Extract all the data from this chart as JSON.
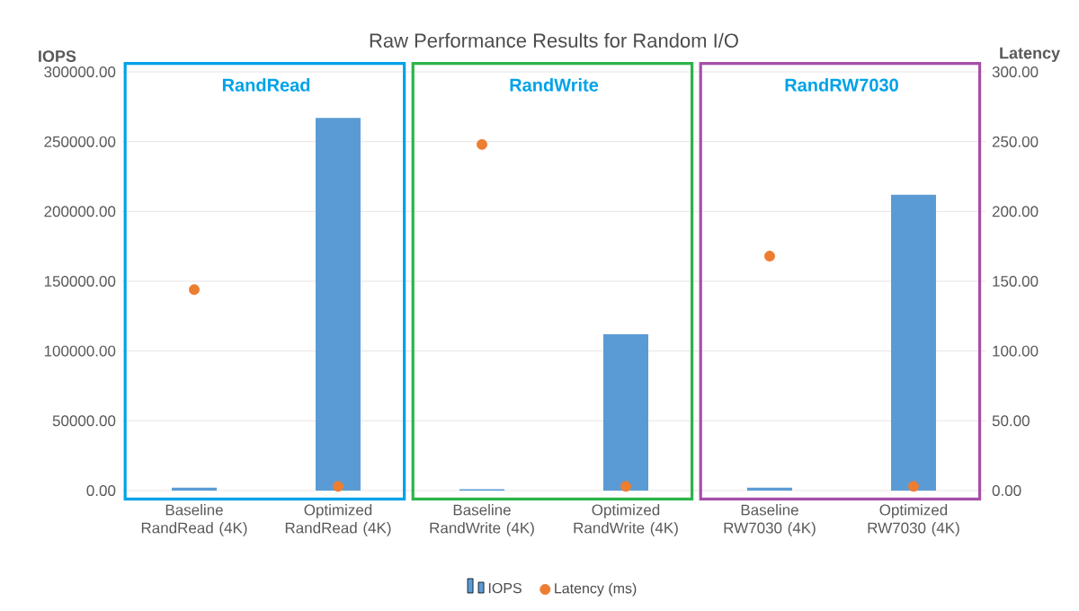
{
  "chart_data": {
    "type": "bar",
    "title": "Raw Performance Results for Random I/O",
    "ylabel": "IOPS",
    "y2label": "Latency",
    "categories": [
      "Baseline RandRead (4K)",
      "Optimized RandRead  (4K)",
      "Baseline RandWrite (4K)",
      "Optimized RandWrite (4K)",
      "Baseline RW7030 (4K)",
      "Optimized RW7030 (4K)"
    ],
    "series": [
      {
        "name": "IOPS",
        "type": "bar",
        "color": "#5b9bd5",
        "values": [
          2000,
          267000,
          1000,
          112000,
          2000,
          212000
        ]
      },
      {
        "name": "Latency (ms)",
        "type": "scatter",
        "axis": "y2",
        "color": "#ed7d31",
        "values": [
          144,
          3,
          248,
          3,
          168,
          3
        ]
      }
    ],
    "ylim": [
      0,
      300000
    ],
    "yticks": [
      {
        "value": 0,
        "label": "0.00"
      },
      {
        "value": 50000,
        "label": "50000.00"
      },
      {
        "value": 100000,
        "label": "100000.00"
      },
      {
        "value": 150000,
        "label": "150000.00"
      },
      {
        "value": 200000,
        "label": "200000.00"
      },
      {
        "value": 250000,
        "label": "250000.00"
      },
      {
        "value": 300000,
        "label": "300000.00"
      }
    ],
    "y2lim": [
      0,
      300
    ],
    "y2ticks": [
      {
        "value": 0,
        "label": "0.00"
      },
      {
        "value": 50,
        "label": "50.00"
      },
      {
        "value": 100,
        "label": "100.00"
      },
      {
        "value": 150,
        "label": "150.00"
      },
      {
        "value": 200,
        "label": "200.00"
      },
      {
        "value": 250,
        "label": "250.00"
      },
      {
        "value": 300,
        "label": "300.00"
      }
    ],
    "annotations": [
      "RandRead",
      "RandWrite",
      "RandRW7030"
    ],
    "grid": "y",
    "legend": "bottom"
  }
}
